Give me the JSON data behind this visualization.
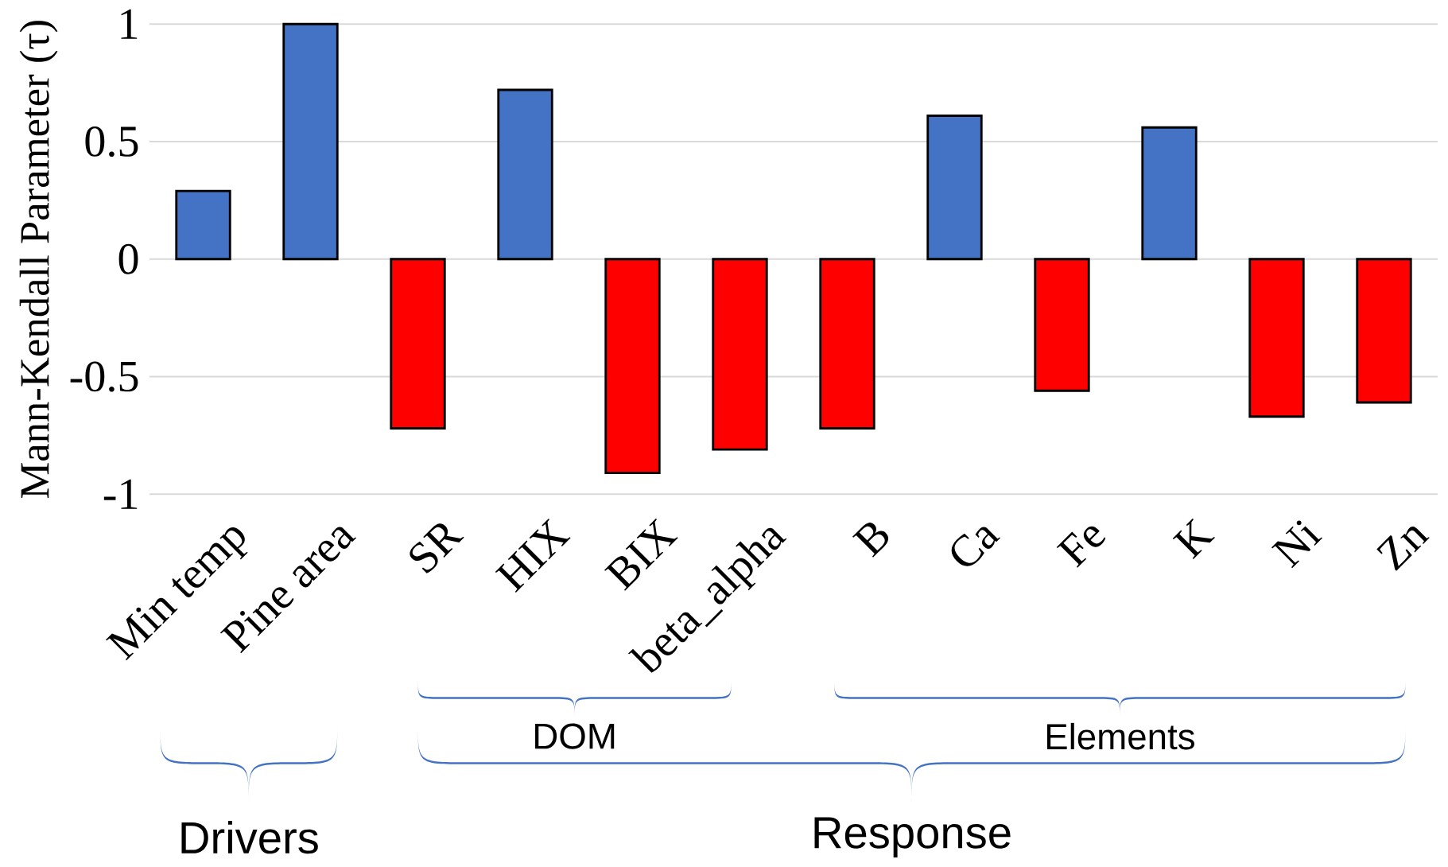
{
  "chart_data": {
    "type": "bar",
    "ylabel": "Mann-Kendall Parameter (τ)",
    "categories": [
      "Min temp",
      "Pine area",
      "SR",
      "HIX",
      "BIX",
      "beta_alpha",
      "B",
      "Ca",
      "Fe",
      "K",
      "Ni",
      "Zn"
    ],
    "values": [
      0.29,
      1.0,
      -0.72,
      0.72,
      -0.91,
      -0.81,
      -0.72,
      0.61,
      -0.56,
      0.56,
      -0.67,
      -0.61
    ],
    "colors": [
      "#4472c4",
      "#4472c4",
      "#ff0000",
      "#4472c4",
      "#ff0000",
      "#ff0000",
      "#ff0000",
      "#4472c4",
      "#ff0000",
      "#4472c4",
      "#ff0000",
      "#ff0000"
    ],
    "ylim": [
      -1,
      1
    ],
    "yticks": [
      -1,
      -0.5,
      0,
      0.5,
      1
    ],
    "grid": "y",
    "annotations": [
      "DOM",
      "Elements",
      "Drivers",
      "Response"
    ]
  }
}
